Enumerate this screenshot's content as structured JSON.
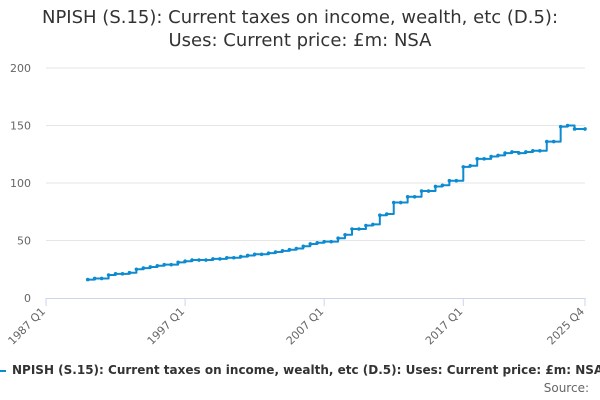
{
  "chart_data": {
    "type": "line",
    "title": "NPISH (S.15): Current taxes on income, wealth, etc (D.5): Uses: Current price: £m: NSA",
    "xlabel": "",
    "ylabel": "",
    "ylim": [
      0,
      200
    ],
    "yticks": [
      "0",
      "50",
      "100",
      "150",
      "200"
    ],
    "xlim": [
      "1987 Q1",
      "2025 Q4"
    ],
    "xticks": [
      "1987 Q1",
      "1997 Q1",
      "2007 Q1",
      "2017 Q1",
      "2025 Q4"
    ],
    "grid": true,
    "legend_position": "bottom",
    "color": "#0d8bd1",
    "source_label": "Source:",
    "series": [
      {
        "name": "NPISH (S.15): Current taxes on income, wealth, etc (D.5): Uses: Current price: £m: NSA",
        "points": [
          [
            "1990 Q1",
            16
          ],
          [
            "1990 Q3",
            17
          ],
          [
            "1991 Q1",
            17
          ],
          [
            "1991 Q3",
            20
          ],
          [
            "1992 Q1",
            21
          ],
          [
            "1992 Q3",
            21
          ],
          [
            "1993 Q1",
            22
          ],
          [
            "1993 Q3",
            25
          ],
          [
            "1994 Q1",
            26
          ],
          [
            "1994 Q3",
            27
          ],
          [
            "1995 Q1",
            28
          ],
          [
            "1995 Q3",
            29
          ],
          [
            "1996 Q1",
            29
          ],
          [
            "1996 Q3",
            31
          ],
          [
            "1997 Q1",
            32
          ],
          [
            "1997 Q3",
            33
          ],
          [
            "1998 Q1",
            33
          ],
          [
            "1998 Q3",
            33
          ],
          [
            "1999 Q1",
            34
          ],
          [
            "1999 Q3",
            34
          ],
          [
            "2000 Q1",
            35
          ],
          [
            "2000 Q3",
            35
          ],
          [
            "2001 Q1",
            36
          ],
          [
            "2001 Q3",
            37
          ],
          [
            "2002 Q1",
            38
          ],
          [
            "2002 Q3",
            38
          ],
          [
            "2003 Q1",
            39
          ],
          [
            "2003 Q3",
            40
          ],
          [
            "2004 Q1",
            41
          ],
          [
            "2004 Q3",
            42
          ],
          [
            "2005 Q1",
            43
          ],
          [
            "2005 Q3",
            45
          ],
          [
            "2006 Q1",
            47
          ],
          [
            "2006 Q3",
            48
          ],
          [
            "2007 Q1",
            49
          ],
          [
            "2007 Q3",
            49
          ],
          [
            "2008 Q1",
            52
          ],
          [
            "2008 Q3",
            55
          ],
          [
            "2009 Q1",
            60
          ],
          [
            "2009 Q3",
            60
          ],
          [
            "2010 Q1",
            63
          ],
          [
            "2010 Q3",
            64
          ],
          [
            "2011 Q1",
            72
          ],
          [
            "2011 Q3",
            73
          ],
          [
            "2012 Q1",
            83
          ],
          [
            "2012 Q3",
            83
          ],
          [
            "2013 Q1",
            88
          ],
          [
            "2013 Q3",
            88
          ],
          [
            "2014 Q1",
            93
          ],
          [
            "2014 Q3",
            93
          ],
          [
            "2015 Q1",
            97
          ],
          [
            "2015 Q3",
            98
          ],
          [
            "2016 Q1",
            102
          ],
          [
            "2016 Q3",
            102
          ],
          [
            "2017 Q1",
            114
          ],
          [
            "2017 Q3",
            115
          ],
          [
            "2018 Q1",
            121
          ],
          [
            "2018 Q3",
            121
          ],
          [
            "2019 Q1",
            123
          ],
          [
            "2019 Q3",
            124
          ],
          [
            "2020 Q1",
            126
          ],
          [
            "2020 Q3",
            127
          ],
          [
            "2021 Q1",
            126
          ],
          [
            "2021 Q3",
            127
          ],
          [
            "2022 Q1",
            128
          ],
          [
            "2022 Q3",
            128
          ],
          [
            "2023 Q1",
            136
          ],
          [
            "2023 Q3",
            136
          ],
          [
            "2024 Q1",
            149
          ],
          [
            "2024 Q3",
            150
          ],
          [
            "2025 Q1",
            147
          ],
          [
            "2025 Q4",
            147
          ]
        ]
      }
    ]
  }
}
